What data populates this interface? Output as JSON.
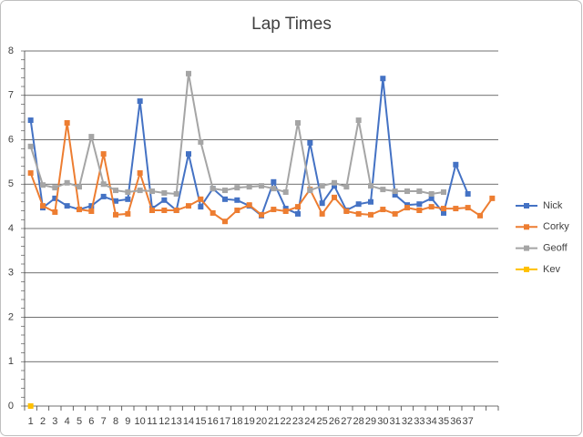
{
  "chart_data": {
    "type": "line",
    "title": "Lap Times",
    "categories": [
      "1",
      "2",
      "3",
      "4",
      "5",
      "6",
      "7",
      "8",
      "9",
      "10",
      "11",
      "12",
      "13",
      "14",
      "15",
      "16",
      "17",
      "18",
      "19",
      "20",
      "21",
      "22",
      "23",
      "24",
      "25",
      "26",
      "27",
      "28",
      "29",
      "30",
      "31",
      "32",
      "33",
      "34",
      "35",
      "36",
      "37",
      null,
      null
    ],
    "series": [
      {
        "name": "Nick",
        "color": "#4472c4",
        "values": [
          6.44,
          4.47,
          4.68,
          4.51,
          4.43,
          4.51,
          4.72,
          4.62,
          4.66,
          6.87,
          4.45,
          4.64,
          4.41,
          5.68,
          4.49,
          4.9,
          4.66,
          4.64,
          4.51,
          4.29,
          5.05,
          4.45,
          4.33,
          5.93,
          4.57,
          4.96,
          4.41,
          4.55,
          4.6,
          7.38,
          4.76,
          4.53,
          4.55,
          4.68,
          4.35,
          5.44,
          4.78,
          null,
          null
        ]
      },
      {
        "name": "Corky",
        "color": "#ed7d31",
        "values": [
          5.25,
          4.51,
          4.37,
          6.38,
          4.43,
          4.39,
          5.68,
          4.31,
          4.33,
          5.25,
          4.41,
          4.41,
          4.41,
          4.51,
          4.66,
          4.35,
          4.16,
          4.41,
          4.53,
          4.31,
          4.43,
          4.39,
          4.49,
          4.88,
          4.33,
          4.7,
          4.39,
          4.33,
          4.31,
          4.43,
          4.33,
          4.47,
          4.41,
          4.49,
          4.45,
          4.45,
          4.47,
          4.29,
          4.68
        ]
      },
      {
        "name": "Geoff",
        "color": "#a5a5a5",
        "values": [
          5.85,
          4.98,
          4.92,
          5.03,
          4.94,
          6.07,
          5.0,
          4.86,
          4.82,
          4.86,
          4.84,
          4.8,
          4.78,
          7.49,
          5.95,
          4.9,
          4.86,
          4.92,
          4.94,
          4.96,
          4.9,
          4.82,
          6.38,
          4.86,
          4.96,
          5.03,
          4.94,
          6.44,
          4.96,
          4.88,
          4.84,
          4.84,
          4.84,
          4.78,
          4.82,
          null,
          null,
          null,
          null
        ]
      },
      {
        "name": "Kev",
        "color": "#ffc000",
        "values": [
          0,
          null,
          null,
          null,
          null,
          null,
          null,
          null,
          null,
          null,
          null,
          null,
          null,
          null,
          null,
          null,
          null,
          null,
          null,
          null,
          null,
          null,
          null,
          null,
          null,
          null,
          null,
          null,
          null,
          null,
          null,
          null,
          null,
          null,
          null,
          null,
          null,
          null,
          null
        ]
      }
    ],
    "ylim": [
      0,
      8
    ],
    "yticks": [
      0,
      1,
      2,
      3,
      4,
      5,
      6,
      7,
      8
    ],
    "grid": true,
    "legend": "right"
  }
}
